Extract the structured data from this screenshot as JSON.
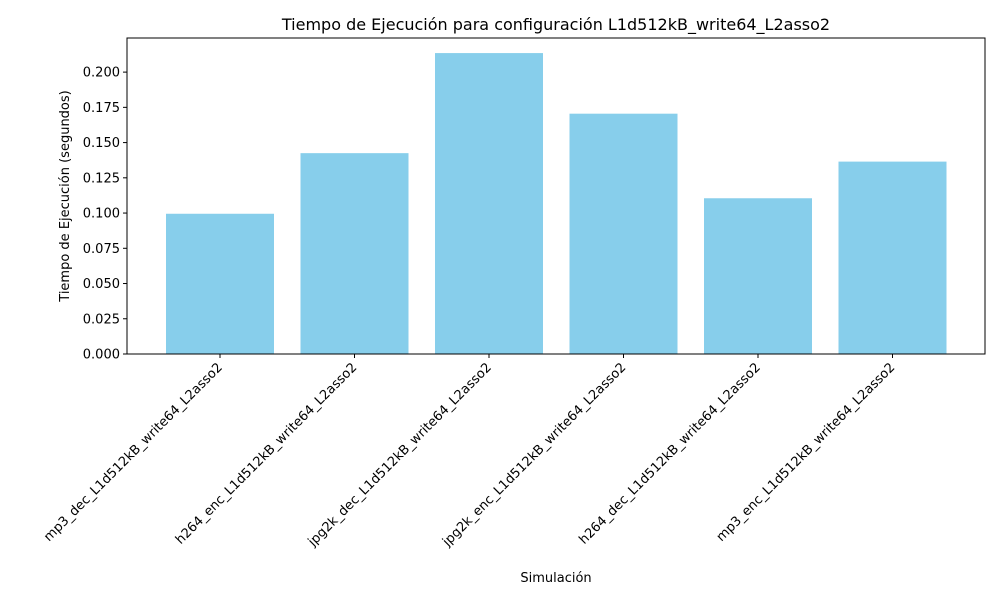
{
  "chart_data": {
    "type": "bar",
    "title": "Tiempo de Ejecución para configuración L1d512kB_write64_L2asso2",
    "xlabel": "Simulación",
    "ylabel": "Tiempo de Ejecución (segundos)",
    "categories": [
      "mp3_dec_L1d512kB_write64_L2asso2",
      "h264_enc_L1d512kB_write64_L2asso2",
      "jpg2k_dec_L1d512kB_write64_L2asso2",
      "jpg2k_enc_L1d512kB_write64_L2asso2",
      "h264_dec_L1d512kB_write64_L2asso2",
      "mp3_enc_L1d512kB_write64_L2asso2"
    ],
    "values": [
      0.0995,
      0.1425,
      0.2135,
      0.1705,
      0.1105,
      0.1365
    ],
    "ylim": [
      0,
      0.2242
    ],
    "yticks": [
      "0.000",
      "0.025",
      "0.050",
      "0.075",
      "0.100",
      "0.125",
      "0.150",
      "0.175",
      "0.200"
    ],
    "bar_color": "#87CEEB",
    "grid": false,
    "legend": "none"
  }
}
